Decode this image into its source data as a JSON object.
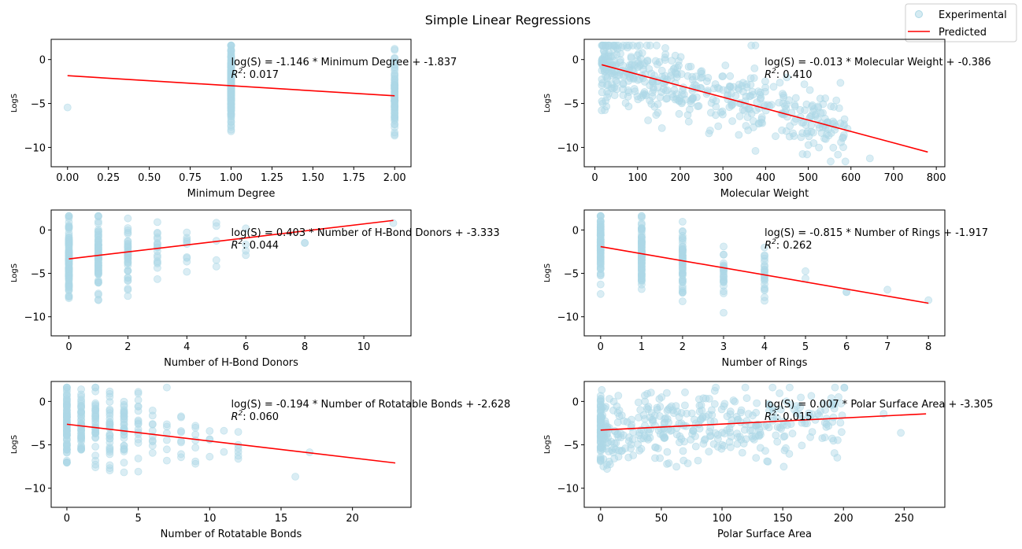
{
  "figure": {
    "title": "Simple Linear Regressions",
    "legend": {
      "placement": "top-right",
      "entries": [
        {
          "label": "Experimental",
          "marker": "circle",
          "color": "#add8e6"
        },
        {
          "label": "Predicted",
          "marker": "line",
          "color": "#ff0000"
        }
      ]
    },
    "colors": {
      "scatter": "#add8e6",
      "line": "#ff0000"
    }
  },
  "chart_data": [
    {
      "type": "scatter",
      "xlabel": "Minimum Degree",
      "ylabel": "LogS",
      "xlim": [
        -0.1,
        2.1
      ],
      "ylim": [
        -12.2,
        2.3
      ],
      "xticks": [
        "0.00",
        "0.25",
        "0.50",
        "0.75",
        "1.00",
        "1.25",
        "1.50",
        "1.75",
        "2.00"
      ],
      "xtick_values": [
        0,
        0.25,
        0.5,
        0.75,
        1.0,
        1.25,
        1.5,
        1.75,
        2.0
      ],
      "yticks": [
        "0",
        "−5",
        "−10"
      ],
      "ytick_values": [
        0,
        -5,
        -10
      ],
      "equation": "log(S) = -1.146 * Minimum Degree + -1.837",
      "r2_label": "R",
      "r2_value": ": 0.017",
      "regression": {
        "slope": -1.146,
        "intercept": -1.837,
        "x_range": [
          0,
          2
        ]
      },
      "points": {
        "x_values": [
          0,
          1,
          2
        ],
        "x_weights": [
          0.01,
          0.72,
          0.27
        ],
        "y_range": [
          -11.6,
          1.6
        ],
        "count": 300
      }
    },
    {
      "type": "scatter",
      "xlabel": "Molecular Weight",
      "ylabel": "LogS",
      "xlim": [
        -25,
        820
      ],
      "ylim": [
        -12.2,
        2.3
      ],
      "xticks": [
        "0",
        "100",
        "200",
        "300",
        "400",
        "500",
        "600",
        "700",
        "800"
      ],
      "xtick_values": [
        0,
        100,
        200,
        300,
        400,
        500,
        600,
        700,
        800
      ],
      "yticks": [
        "0",
        "−5",
        "−10"
      ],
      "ytick_values": [
        0,
        -5,
        -10
      ],
      "equation": "log(S) = -0.013 * Molecular Weight + -0.386",
      "r2_label": "R",
      "r2_value": ": 0.410",
      "regression": {
        "slope": -0.013,
        "intercept": -0.386,
        "x_range": [
          16,
          780
        ]
      },
      "points": {
        "x_range": [
          16,
          780
        ],
        "y_range": [
          -11.6,
          1.6
        ],
        "count": 500,
        "continuous": true
      }
    },
    {
      "type": "scatter",
      "xlabel": "Number of H-Bond Donors",
      "ylabel": "LogS",
      "xlim": [
        -0.6,
        11.6
      ],
      "ylim": [
        -12.2,
        2.3
      ],
      "xticks": [
        "0",
        "2",
        "4",
        "6",
        "8",
        "10"
      ],
      "xtick_values": [
        0,
        2,
        4,
        6,
        8,
        10
      ],
      "yticks": [
        "0",
        "−5",
        "−10"
      ],
      "ytick_values": [
        0,
        -5,
        -10
      ],
      "equation": "log(S) = 0.403 * Number of H-Bond Donors + -3.333",
      "r2_label": "R",
      "r2_value": ": 0.044",
      "regression": {
        "slope": 0.403,
        "intercept": -3.333,
        "x_range": [
          0,
          11
        ]
      },
      "points": {
        "x_values": [
          0,
          1,
          2,
          3,
          4,
          5,
          6,
          8,
          11
        ],
        "x_weights": [
          0.46,
          0.3,
          0.12,
          0.05,
          0.03,
          0.02,
          0.01,
          0.005,
          0.005
        ],
        "y_range": [
          -11.6,
          1.6
        ],
        "count": 300
      }
    },
    {
      "type": "scatter",
      "xlabel": "Number of Rings",
      "ylabel": "LogS",
      "xlim": [
        -0.4,
        8.4
      ],
      "ylim": [
        -12.2,
        2.3
      ],
      "xticks": [
        "0",
        "1",
        "2",
        "3",
        "4",
        "5",
        "6",
        "7",
        "8"
      ],
      "xtick_values": [
        0,
        1,
        2,
        3,
        4,
        5,
        6,
        7,
        8
      ],
      "yticks": [
        "0",
        "−5",
        "−10"
      ],
      "ytick_values": [
        0,
        -5,
        -10
      ],
      "equation": "log(S) = -0.815 * Number of Rings + -1.917",
      "r2_label": "R",
      "r2_value": ": 0.262",
      "regression": {
        "slope": -0.815,
        "intercept": -1.917,
        "x_range": [
          0,
          8
        ]
      },
      "points": {
        "x_values": [
          0,
          1,
          2,
          3,
          4,
          5,
          6,
          7,
          8
        ],
        "x_weights": [
          0.25,
          0.33,
          0.2,
          0.1,
          0.06,
          0.03,
          0.01,
          0.01,
          0.01
        ],
        "y_range": [
          -11.6,
          1.6
        ],
        "count": 300
      }
    },
    {
      "type": "scatter",
      "xlabel": "Number of Rotatable Bonds",
      "ylabel": "LogS",
      "xlim": [
        -1.1,
        24.1
      ],
      "ylim": [
        -12.2,
        2.3
      ],
      "xticks": [
        "0",
        "5",
        "10",
        "15",
        "20"
      ],
      "xtick_values": [
        0,
        5,
        10,
        15,
        20
      ],
      "yticks": [
        "0",
        "−5",
        "−10"
      ],
      "ytick_values": [
        0,
        -5,
        -10
      ],
      "equation": "log(S) = -0.194 * Number of Rotatable Bonds + -2.628",
      "r2_label": "R",
      "r2_value": ": 0.060",
      "regression": {
        "slope": -0.194,
        "intercept": -2.628,
        "x_range": [
          0,
          23
        ]
      },
      "points": {
        "x_values": [
          0,
          1,
          2,
          3,
          4,
          5,
          6,
          7,
          8,
          9,
          10,
          11,
          12,
          13,
          14,
          16,
          17,
          23
        ],
        "x_weights": [
          0.3,
          0.18,
          0.12,
          0.1,
          0.08,
          0.06,
          0.04,
          0.03,
          0.025,
          0.02,
          0.015,
          0.01,
          0.01,
          0.008,
          0.006,
          0.005,
          0.004,
          0.003
        ],
        "y_range": [
          -11.6,
          1.6
        ],
        "count": 300
      }
    },
    {
      "type": "scatter",
      "xlabel": "Polar Surface Area",
      "ylabel": "LogS",
      "xlim": [
        -13.5,
        283.5
      ],
      "ylim": [
        -12.2,
        2.3
      ],
      "xticks": [
        "0",
        "50",
        "100",
        "150",
        "200",
        "250"
      ],
      "xtick_values": [
        0,
        50,
        100,
        150,
        200,
        250
      ],
      "yticks": [
        "0",
        "−5",
        "−10"
      ],
      "ytick_values": [
        0,
        -5,
        -10
      ],
      "equation": "log(S) = 0.007 * Polar Surface Area + -3.305",
      "r2_label": "R",
      "r2_value": ": 0.015",
      "regression": {
        "slope": 0.007,
        "intercept": -3.305,
        "x_range": [
          0,
          268
        ]
      },
      "points": {
        "x_range": [
          0,
          268
        ],
        "zero_cluster": true,
        "y_range": [
          -11.6,
          1.6
        ],
        "count": 450,
        "continuous": true
      }
    }
  ]
}
